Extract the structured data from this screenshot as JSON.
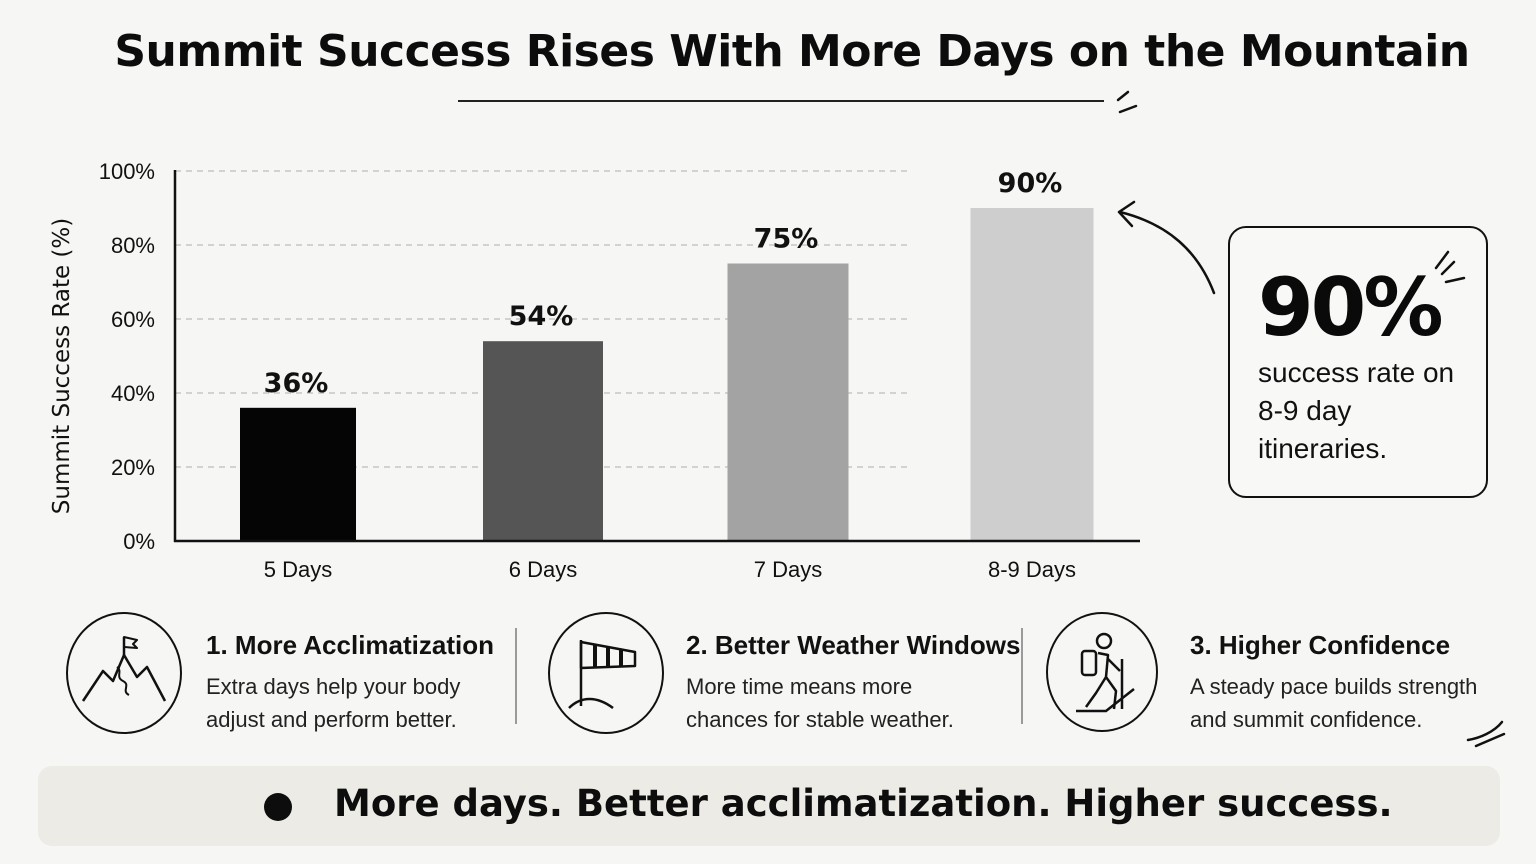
{
  "title": "Summit Success Rises With More Days on the Mountain",
  "chart_data": {
    "type": "bar",
    "categories": [
      "5 Days",
      "6 Days",
      "7 Days",
      "8-9 Days"
    ],
    "values": [
      36,
      54,
      75,
      90
    ],
    "value_labels": [
      "36%",
      "54%",
      "75%",
      "90%"
    ],
    "bar_colors": [
      "#050505",
      "#555555",
      "#a3a3a3",
      "#cecece"
    ],
    "ylabel": "Summit Success Rate (%)",
    "xlabel": "",
    "ylim": [
      0,
      100
    ],
    "yticks": [
      0,
      20,
      40,
      60,
      80,
      100
    ],
    "ytick_labels": [
      "0%",
      "20%",
      "40%",
      "60%",
      "80%",
      "100%"
    ],
    "grid": true,
    "grid_style": "dashed"
  },
  "callout": {
    "value": "90%",
    "text": "success rate on 8-9 day itineraries."
  },
  "features": [
    {
      "icon": "mountain-flag-icon",
      "title": "1. More Acclimatization",
      "desc_line1": "Extra days help your body",
      "desc_line2": "adjust and perform better."
    },
    {
      "icon": "windsock-icon",
      "title": "2. Better Weather Windows",
      "desc_line1": "More time means more",
      "desc_line2": "chances for stable weather."
    },
    {
      "icon": "hiker-icon",
      "title": "3. Higher Confidence",
      "desc_line1": "A steady pace builds strength",
      "desc_line2": "and summit confidence."
    }
  ],
  "banner": {
    "text": "More days. Better acclimatization. Higher success."
  }
}
